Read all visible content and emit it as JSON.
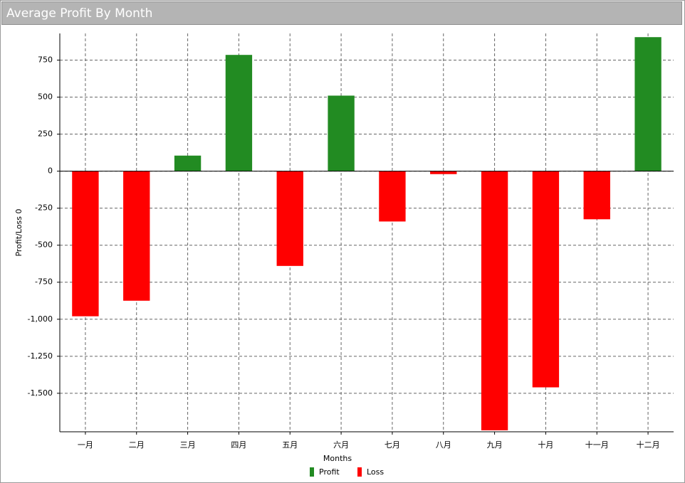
{
  "chart_data": {
    "type": "bar",
    "title": "Average Profit By Month",
    "x_label": "Months",
    "y_label": "Profit/Loss 0",
    "categories": [
      "一月",
      "二月",
      "三月",
      "四月",
      "五月",
      "六月",
      "七月",
      "八月",
      "九月",
      "十月",
      "十一月",
      "十二月"
    ],
    "series": [
      {
        "name": "Profit",
        "color": "#228b22",
        "values": [
          null,
          null,
          105,
          785,
          null,
          510,
          null,
          null,
          null,
          null,
          null,
          905
        ]
      },
      {
        "name": "Loss",
        "color": "#ff0000",
        "values": [
          -980,
          -875,
          null,
          null,
          -640,
          null,
          -340,
          -20,
          -1750,
          -1460,
          -325,
          null
        ]
      }
    ],
    "ylim": [
      -1760,
      930
    ],
    "yticks": [
      {
        "value": -1500,
        "label": "-1,500"
      },
      {
        "value": -1250,
        "label": "-1,250"
      },
      {
        "value": -1000,
        "label": "-1,000"
      },
      -750,
      -500,
      -250,
      0,
      250,
      500,
      750
    ],
    "grid": true
  }
}
